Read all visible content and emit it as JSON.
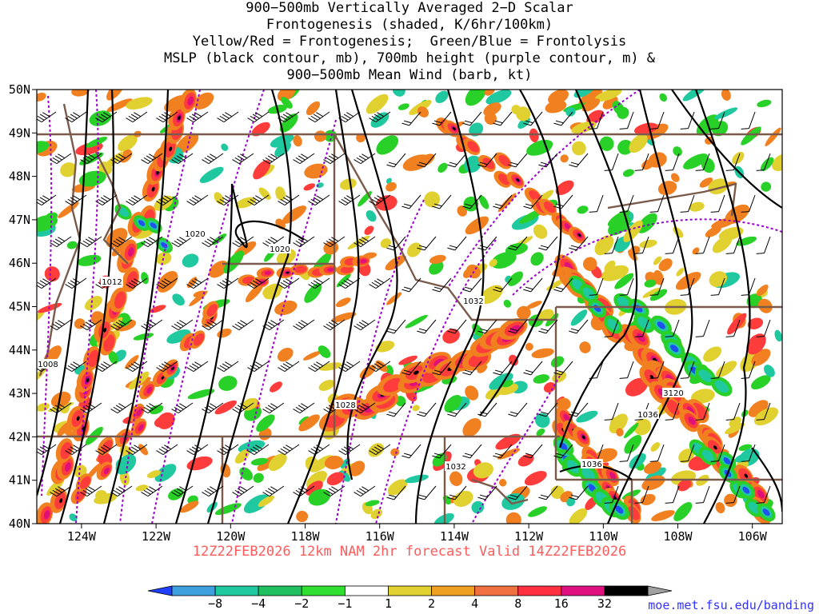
{
  "title_lines": [
    "900−500mb Vertically Averaged 2−D Scalar",
    "Frontogenesis (shaded, K/6hr/100km)",
    "Yellow/Red = Frontogenesis;  Green/Blue = Frontolysis",
    "MSLP (black contour, mb), 700mb height (purple contour, m) &",
    "900−500mb Mean Wind (barb, kt)"
  ],
  "footer": "12Z22FEB2026 12km NAM 2hr forecast Valid 14Z22FEB2026",
  "credit": "moe.met.fsu.edu/banding",
  "lat_labels": [
    "50N",
    "49N",
    "48N",
    "47N",
    "46N",
    "45N",
    "44N",
    "43N",
    "42N",
    "41N",
    "40N"
  ],
  "lon_labels": [
    "124W",
    "122W",
    "120W",
    "118W",
    "116W",
    "114W",
    "112W",
    "110W",
    "108W",
    "106W"
  ],
  "contour_labels": [
    "1020",
    "1020",
    "1012",
    "1008",
    "1032",
    "1028",
    "1032",
    "1036",
    "1036",
    "3120"
  ],
  "colorbar": {
    "ticks": [
      "−8",
      "−4",
      "−2",
      "−1",
      "1",
      "2",
      "4",
      "8",
      "16",
      "32"
    ],
    "colors": [
      "#2040ff",
      "#3fa0e0",
      "#20c8a0",
      "#20c060",
      "#30e030",
      "#ffffff",
      "#e0d030",
      "#f0a020",
      "#f07040",
      "#ff3040",
      "#e01080",
      "#000000",
      "#a0a0a0"
    ]
  },
  "shading_colors": {
    "yellow": "#e0d030",
    "orange": "#f08020",
    "red": "#ff3c3c",
    "magenta": "#e0107a",
    "black": "#000000",
    "green": "#28d028",
    "teal": "#20c8a0",
    "blue": "#2050f0",
    "mslp_contour": "#000000",
    "height_contour": "#9b00d0",
    "borders": "#7a5a4a"
  }
}
